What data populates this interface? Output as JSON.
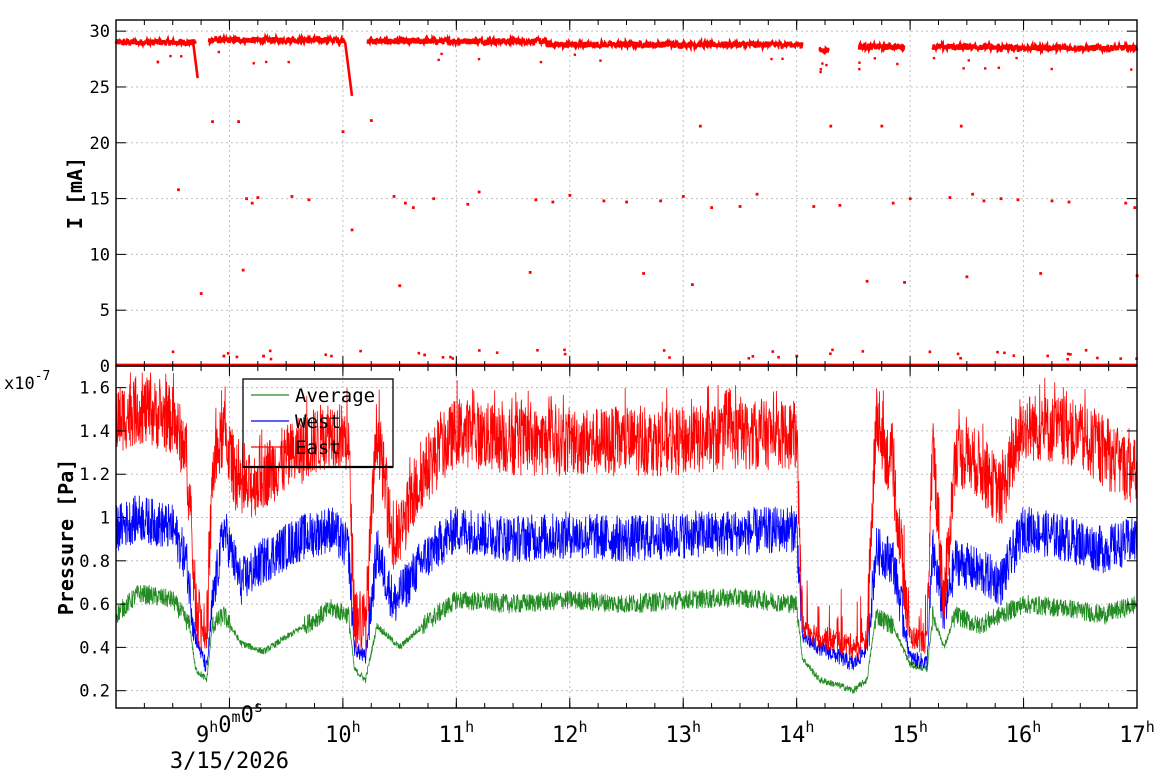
{
  "chart_data": [
    {
      "type": "scatter",
      "ylabel": "I [mA]",
      "ylim": [
        0,
        31
      ],
      "y_ticks": [
        "0",
        "5",
        "10",
        "15",
        "20",
        "25",
        "30"
      ],
      "x_range_hours": [
        8.0,
        17.0
      ],
      "grid": true,
      "series": [
        {
          "color": "#ff0000",
          "baseline_level": 28.9,
          "segments": [
            {
              "x": [
                8.0,
                8.7
              ],
              "y": 29.0
            },
            {
              "x": [
                8.82,
                10.02
              ],
              "y": 29.2
            },
            {
              "x": [
                10.22,
                11.8
              ],
              "y": 29.1
            },
            {
              "x": [
                11.8,
                14.05
              ],
              "y": 28.8
            },
            {
              "x": [
                14.2,
                14.28
              ],
              "y": 28.3
            },
            {
              "x": [
                14.55,
                14.95
              ],
              "y": 28.6
            },
            {
              "x": [
                15.2,
                15.7
              ],
              "y": 28.6
            },
            {
              "x": [
                15.7,
                17.0
              ],
              "y": 28.5
            }
          ],
          "drops": [
            {
              "x": [
                8.68,
                8.72
              ],
              "y": [
                29.0,
                25.8
              ]
            },
            {
              "x": [
                10.02,
                10.08
              ],
              "y": [
                29.0,
                24.2
              ]
            }
          ],
          "outliers": [
            {
              "x": 8.55,
              "y": 15.8
            },
            {
              "x": 8.75,
              "y": 6.5
            },
            {
              "x": 8.85,
              "y": 21.9
            },
            {
              "x": 8.95,
              "y": 0.9
            },
            {
              "x": 9.08,
              "y": 21.9
            },
            {
              "x": 9.12,
              "y": 8.6
            },
            {
              "x": 9.15,
              "y": 15.0
            },
            {
              "x": 9.2,
              "y": 14.6
            },
            {
              "x": 9.25,
              "y": 15.1
            },
            {
              "x": 9.3,
              "y": 0.9
            },
            {
              "x": 9.55,
              "y": 15.2
            },
            {
              "x": 9.7,
              "y": 14.9
            },
            {
              "x": 10.0,
              "y": 21.0
            },
            {
              "x": 10.08,
              "y": 12.2
            },
            {
              "x": 10.25,
              "y": 22.0
            },
            {
              "x": 10.45,
              "y": 15.2
            },
            {
              "x": 10.5,
              "y": 7.2
            },
            {
              "x": 10.55,
              "y": 14.6
            },
            {
              "x": 10.62,
              "y": 14.2
            },
            {
              "x": 10.72,
              "y": 1.0
            },
            {
              "x": 10.8,
              "y": 15.0
            },
            {
              "x": 11.1,
              "y": 14.5
            },
            {
              "x": 11.2,
              "y": 15.6
            },
            {
              "x": 11.65,
              "y": 8.4
            },
            {
              "x": 11.7,
              "y": 14.9
            },
            {
              "x": 11.85,
              "y": 14.7
            },
            {
              "x": 12.0,
              "y": 15.3
            },
            {
              "x": 12.3,
              "y": 14.8
            },
            {
              "x": 12.5,
              "y": 14.7
            },
            {
              "x": 12.65,
              "y": 8.3
            },
            {
              "x": 12.8,
              "y": 14.8
            },
            {
              "x": 13.0,
              "y": 15.2
            },
            {
              "x": 13.08,
              "y": 7.3
            },
            {
              "x": 13.15,
              "y": 21.5
            },
            {
              "x": 13.25,
              "y": 14.2
            },
            {
              "x": 13.5,
              "y": 14.3
            },
            {
              "x": 13.65,
              "y": 15.4
            },
            {
              "x": 14.0,
              "y": 0.9
            },
            {
              "x": 14.15,
              "y": 14.3
            },
            {
              "x": 14.3,
              "y": 21.5
            },
            {
              "x": 14.38,
              "y": 14.4
            },
            {
              "x": 14.62,
              "y": 7.6
            },
            {
              "x": 14.75,
              "y": 21.5
            },
            {
              "x": 14.85,
              "y": 14.6
            },
            {
              "x": 14.95,
              "y": 7.5
            },
            {
              "x": 15.0,
              "y": 15.0
            },
            {
              "x": 15.35,
              "y": 15.1
            },
            {
              "x": 15.45,
              "y": 21.5
            },
            {
              "x": 15.5,
              "y": 8.0
            },
            {
              "x": 15.55,
              "y": 15.4
            },
            {
              "x": 15.65,
              "y": 14.8
            },
            {
              "x": 15.8,
              "y": 15.0
            },
            {
              "x": 15.95,
              "y": 14.9
            },
            {
              "x": 16.15,
              "y": 8.3
            },
            {
              "x": 16.25,
              "y": 14.8
            },
            {
              "x": 16.4,
              "y": 14.7
            },
            {
              "x": 16.9,
              "y": 14.6
            },
            {
              "x": 16.98,
              "y": 14.2
            },
            {
              "x": 17.0,
              "y": 8.1
            }
          ]
        }
      ]
    },
    {
      "type": "line",
      "ylabel": "Pressure [Pa]",
      "y_scale_label": "x10",
      "y_scale_exponent": "-7",
      "ylim": [
        0.12,
        1.7
      ],
      "y_ticks": [
        "0.2",
        "0.4",
        "0.6",
        "0.8",
        "1",
        "1.2",
        "1.4",
        "1.6"
      ],
      "x_range_hours": [
        8.0,
        17.0
      ],
      "grid": true,
      "legend_position": "top-left",
      "x_tick_labels": [
        "9h0m0s",
        "10h",
        "11h",
        "12h",
        "13h",
        "14h",
        "15h",
        "16h",
        "17h"
      ],
      "x_tick_hours": [
        9,
        10,
        11,
        12,
        13,
        14,
        15,
        16,
        17
      ],
      "date_label": "3/15/2026",
      "series": [
        {
          "name": "Average",
          "color": "#228b22",
          "points": [
            [
              8.0,
              0.55
            ],
            [
              8.2,
              0.65
            ],
            [
              8.5,
              0.62
            ],
            [
              8.65,
              0.5
            ],
            [
              8.7,
              0.3
            ],
            [
              8.8,
              0.25
            ],
            [
              8.85,
              0.5
            ],
            [
              8.95,
              0.55
            ],
            [
              9.1,
              0.42
            ],
            [
              9.3,
              0.38
            ],
            [
              9.6,
              0.48
            ],
            [
              9.9,
              0.58
            ],
            [
              10.05,
              0.55
            ],
            [
              10.1,
              0.3
            ],
            [
              10.2,
              0.25
            ],
            [
              10.3,
              0.5
            ],
            [
              10.5,
              0.4
            ],
            [
              10.7,
              0.5
            ],
            [
              11.0,
              0.62
            ],
            [
              11.5,
              0.6
            ],
            [
              12.0,
              0.62
            ],
            [
              12.5,
              0.6
            ],
            [
              13.0,
              0.62
            ],
            [
              13.5,
              0.63
            ],
            [
              14.0,
              0.6
            ],
            [
              14.05,
              0.35
            ],
            [
              14.2,
              0.25
            ],
            [
              14.4,
              0.22
            ],
            [
              14.5,
              0.2
            ],
            [
              14.62,
              0.25
            ],
            [
              14.7,
              0.55
            ],
            [
              14.85,
              0.5
            ],
            [
              15.0,
              0.32
            ],
            [
              15.15,
              0.3
            ],
            [
              15.2,
              0.55
            ],
            [
              15.3,
              0.4
            ],
            [
              15.4,
              0.55
            ],
            [
              15.6,
              0.5
            ],
            [
              15.8,
              0.55
            ],
            [
              16.0,
              0.6
            ],
            [
              16.4,
              0.58
            ],
            [
              16.7,
              0.55
            ],
            [
              17.0,
              0.6
            ]
          ]
        },
        {
          "name": "West",
          "color": "#0000ff",
          "points": [
            [
              8.0,
              0.95
            ],
            [
              8.2,
              1.0
            ],
            [
              8.5,
              0.95
            ],
            [
              8.62,
              0.8
            ],
            [
              8.7,
              0.45
            ],
            [
              8.8,
              0.3
            ],
            [
              8.85,
              0.6
            ],
            [
              8.95,
              0.95
            ],
            [
              9.1,
              0.7
            ],
            [
              9.3,
              0.8
            ],
            [
              9.6,
              0.9
            ],
            [
              9.9,
              0.95
            ],
            [
              10.05,
              0.85
            ],
            [
              10.1,
              0.4
            ],
            [
              10.2,
              0.35
            ],
            [
              10.3,
              0.85
            ],
            [
              10.45,
              0.6
            ],
            [
              10.7,
              0.8
            ],
            [
              11.0,
              0.95
            ],
            [
              11.5,
              0.9
            ],
            [
              12.0,
              0.92
            ],
            [
              12.5,
              0.9
            ],
            [
              13.0,
              0.92
            ],
            [
              13.5,
              0.93
            ],
            [
              14.0,
              0.95
            ],
            [
              14.05,
              0.45
            ],
            [
              14.2,
              0.4
            ],
            [
              14.4,
              0.35
            ],
            [
              14.5,
              0.32
            ],
            [
              14.62,
              0.4
            ],
            [
              14.7,
              0.85
            ],
            [
              14.85,
              0.8
            ],
            [
              15.0,
              0.35
            ],
            [
              15.15,
              0.33
            ],
            [
              15.2,
              0.85
            ],
            [
              15.3,
              0.55
            ],
            [
              15.4,
              0.8
            ],
            [
              15.6,
              0.75
            ],
            [
              15.8,
              0.7
            ],
            [
              16.0,
              0.95
            ],
            [
              16.4,
              0.9
            ],
            [
              16.7,
              0.85
            ],
            [
              17.0,
              0.9
            ]
          ]
        },
        {
          "name": "East",
          "color": "#ff0000",
          "points": [
            [
              8.0,
              1.45
            ],
            [
              8.2,
              1.5
            ],
            [
              8.5,
              1.45
            ],
            [
              8.62,
              1.3
            ],
            [
              8.7,
              0.6
            ],
            [
              8.8,
              0.42
            ],
            [
              8.85,
              1.2
            ],
            [
              8.95,
              1.4
            ],
            [
              9.1,
              1.1
            ],
            [
              9.3,
              1.2
            ],
            [
              9.6,
              1.3
            ],
            [
              9.9,
              1.4
            ],
            [
              10.05,
              1.35
            ],
            [
              10.1,
              0.55
            ],
            [
              10.2,
              0.5
            ],
            [
              10.3,
              1.42
            ],
            [
              10.45,
              0.85
            ],
            [
              10.7,
              1.2
            ],
            [
              11.0,
              1.4
            ],
            [
              11.5,
              1.35
            ],
            [
              12.0,
              1.35
            ],
            [
              12.5,
              1.35
            ],
            [
              13.0,
              1.35
            ],
            [
              13.5,
              1.38
            ],
            [
              14.0,
              1.38
            ],
            [
              14.05,
              0.5
            ],
            [
              14.2,
              0.45
            ],
            [
              14.4,
              0.42
            ],
            [
              14.55,
              0.4
            ],
            [
              14.62,
              0.45
            ],
            [
              14.7,
              1.45
            ],
            [
              14.85,
              1.2
            ],
            [
              15.0,
              0.45
            ],
            [
              15.15,
              0.42
            ],
            [
              15.2,
              1.35
            ],
            [
              15.3,
              0.6
            ],
            [
              15.4,
              1.3
            ],
            [
              15.6,
              1.25
            ],
            [
              15.8,
              1.1
            ],
            [
              16.0,
              1.42
            ],
            [
              16.4,
              1.4
            ],
            [
              16.7,
              1.3
            ],
            [
              17.0,
              1.2
            ]
          ]
        }
      ]
    }
  ]
}
